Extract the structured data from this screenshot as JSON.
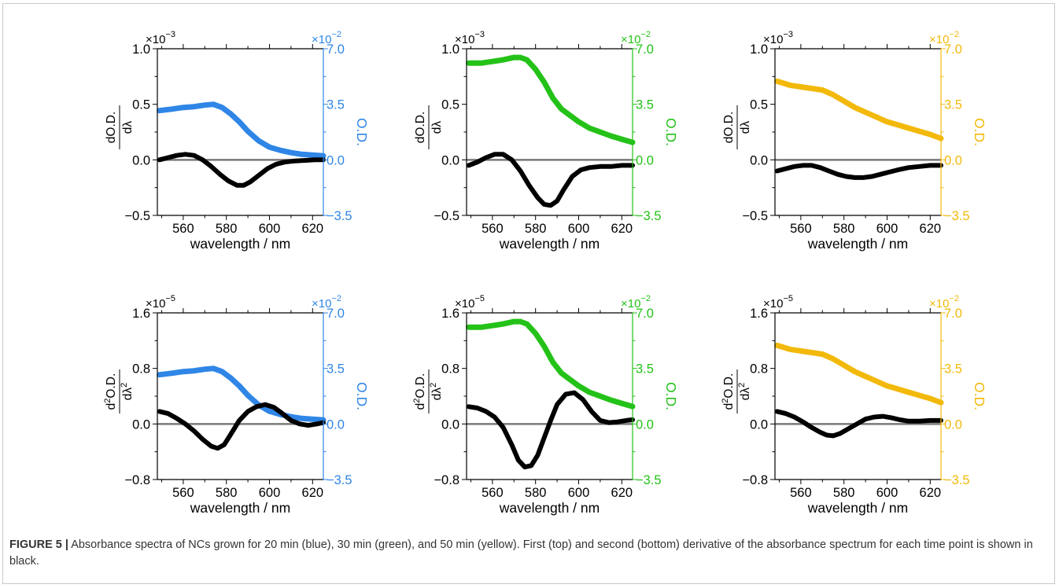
{
  "chart_data": [
    {
      "type": "line",
      "row": "top",
      "color": "#2f86e6",
      "left_axis": {
        "ylim": [
          -0.5,
          1.0
        ],
        "ticks": [
          "1.0",
          "0.5",
          "0.0",
          "-0.5"
        ],
        "label": "dO.D. / dλ",
        "multiplier": "×10",
        "exponent": "−3"
      },
      "right_axis": {
        "ylim": [
          -3.5,
          7.0
        ],
        "ticks": [
          "7.0",
          "3.5",
          "0.0",
          "-3.5"
        ],
        "label": "O.D.",
        "multiplier": "×10",
        "exponent": "−2"
      },
      "xlim": [
        548,
        625
      ],
      "xticks": [
        "560",
        "580",
        "600",
        "620"
      ],
      "xlabel": "wavelength / nm",
      "absorbance": {
        "x": [
          549,
          555,
          560,
          565,
          570,
          574,
          578,
          582,
          586,
          590,
          595,
          600,
          605,
          610,
          615,
          620,
          625
        ],
        "y": [
          3.1,
          3.2,
          3.3,
          3.35,
          3.45,
          3.5,
          3.3,
          2.9,
          2.4,
          1.8,
          1.2,
          0.8,
          0.6,
          0.45,
          0.35,
          0.3,
          0.25
        ]
      },
      "derivative": {
        "x": [
          549,
          553,
          557,
          561,
          565,
          569,
          573,
          577,
          581,
          585,
          588,
          591,
          595,
          599,
          603,
          607,
          612,
          617,
          621,
          625
        ],
        "y": [
          0.0,
          0.02,
          0.04,
          0.05,
          0.04,
          0.0,
          -0.06,
          -0.13,
          -0.19,
          -0.23,
          -0.23,
          -0.2,
          -0.14,
          -0.08,
          -0.04,
          -0.02,
          -0.01,
          -0.005,
          0.0,
          0.0
        ]
      }
    },
    {
      "type": "line",
      "row": "top",
      "color": "#24c218",
      "left_axis": {
        "ylim": [
          -0.5,
          1.0
        ],
        "ticks": [
          "1.0",
          "0.5",
          "0.0",
          "-0.5"
        ],
        "label": "dO.D. / dλ",
        "multiplier": "×10",
        "exponent": "−3"
      },
      "right_axis": {
        "ylim": [
          -3.5,
          7.0
        ],
        "ticks": [
          "7.0",
          "3.5",
          "0.0",
          "-3.5"
        ],
        "label": "O.D.",
        "multiplier": "×10",
        "exponent": "−2"
      },
      "xlim": [
        548,
        625
      ],
      "xticks": [
        "560",
        "580",
        "600",
        "620"
      ],
      "xlabel": "wavelength / nm",
      "absorbance": {
        "x": [
          549,
          555,
          560,
          565,
          570,
          573,
          576,
          580,
          584,
          588,
          592,
          596,
          600,
          605,
          610,
          615,
          620,
          625
        ],
        "y": [
          6.1,
          6.1,
          6.2,
          6.3,
          6.45,
          6.45,
          6.3,
          5.7,
          4.9,
          3.9,
          3.2,
          2.8,
          2.4,
          2.0,
          1.75,
          1.5,
          1.3,
          1.1
        ]
      },
      "derivative": {
        "x": [
          549,
          553,
          557,
          561,
          565,
          569,
          573,
          577,
          581,
          584,
          587,
          590,
          593,
          597,
          601,
          605,
          610,
          615,
          620,
          625
        ],
        "y": [
          -0.05,
          -0.02,
          0.02,
          0.05,
          0.05,
          0.0,
          -0.1,
          -0.23,
          -0.34,
          -0.4,
          -0.41,
          -0.37,
          -0.27,
          -0.15,
          -0.09,
          -0.07,
          -0.06,
          -0.06,
          -0.05,
          -0.05
        ]
      }
    },
    {
      "type": "line",
      "row": "top",
      "color": "#f2b90a",
      "left_axis": {
        "ylim": [
          -0.5,
          1.0
        ],
        "ticks": [
          "1.0",
          "0.5",
          "0.0",
          "-0.5"
        ],
        "label": "dO.D. / dλ",
        "multiplier": "×10",
        "exponent": "−3"
      },
      "right_axis": {
        "ylim": [
          -3.5,
          7.0
        ],
        "ticks": [
          "7.0",
          "3.5",
          "0.0",
          "-3.5"
        ],
        "label": "O.D.",
        "multiplier": "×10",
        "exponent": "−2"
      },
      "xlim": [
        548,
        625
      ],
      "xticks": [
        "560",
        "580",
        "600",
        "620"
      ],
      "xlabel": "wavelength / nm",
      "absorbance": {
        "x": [
          549,
          555,
          560,
          565,
          570,
          575,
          580,
          585,
          590,
          595,
          600,
          605,
          610,
          615,
          620,
          625
        ],
        "y": [
          4.95,
          4.7,
          4.6,
          4.5,
          4.4,
          4.1,
          3.7,
          3.3,
          3.0,
          2.7,
          2.4,
          2.2,
          2.0,
          1.8,
          1.6,
          1.35
        ]
      },
      "derivative": {
        "x": [
          549,
          553,
          557,
          561,
          565,
          569,
          573,
          577,
          581,
          585,
          589,
          593,
          597,
          601,
          605,
          610,
          615,
          620,
          625
        ],
        "y": [
          -0.1,
          -0.08,
          -0.06,
          -0.05,
          -0.05,
          -0.07,
          -0.1,
          -0.13,
          -0.15,
          -0.16,
          -0.16,
          -0.15,
          -0.13,
          -0.11,
          -0.09,
          -0.07,
          -0.06,
          -0.05,
          -0.05
        ]
      }
    },
    {
      "type": "line",
      "row": "bottom",
      "color": "#2f86e6",
      "left_axis": {
        "ylim": [
          -0.8,
          1.6
        ],
        "ticks": [
          "1.6",
          "0.8",
          "0.0",
          "-0.8"
        ],
        "label": "d²O.D. / dλ²",
        "multiplier": "×10",
        "exponent": "−5"
      },
      "right_axis": {
        "ylim": [
          -3.5,
          7.0
        ],
        "ticks": [
          "7.0",
          "3.5",
          "0.0",
          "-3.5"
        ],
        "label": "O.D.",
        "multiplier": "×10",
        "exponent": "−2"
      },
      "xlim": [
        548,
        625
      ],
      "xticks": [
        "560",
        "580",
        "600",
        "620"
      ],
      "xlabel": "wavelength / nm",
      "absorbance": {
        "x": [
          549,
          555,
          560,
          565,
          570,
          574,
          578,
          582,
          586,
          590,
          595,
          600,
          605,
          610,
          615,
          620,
          625
        ],
        "y": [
          3.1,
          3.2,
          3.3,
          3.35,
          3.45,
          3.5,
          3.3,
          2.9,
          2.4,
          1.8,
          1.2,
          0.8,
          0.6,
          0.45,
          0.35,
          0.3,
          0.25
        ]
      },
      "derivative": {
        "x": [
          549,
          553,
          557,
          561,
          565,
          569,
          573,
          576,
          579,
          582,
          586,
          590,
          594,
          598,
          602,
          606,
          610,
          614,
          618,
          622,
          625
        ],
        "y": [
          0.18,
          0.15,
          0.08,
          0.0,
          -0.1,
          -0.22,
          -0.32,
          -0.35,
          -0.3,
          -0.15,
          0.05,
          0.18,
          0.25,
          0.28,
          0.24,
          0.15,
          0.05,
          0.0,
          -0.02,
          0.0,
          0.02
        ]
      }
    },
    {
      "type": "line",
      "row": "bottom",
      "color": "#24c218",
      "left_axis": {
        "ylim": [
          -0.8,
          1.6
        ],
        "ticks": [
          "1.6",
          "0.8",
          "0.0",
          "-0.8"
        ],
        "label": "d²O.D. / dλ²",
        "multiplier": "×10",
        "exponent": "−5"
      },
      "right_axis": {
        "ylim": [
          -3.5,
          7.0
        ],
        "ticks": [
          "7.0",
          "3.5",
          "0.0",
          "-3.5"
        ],
        "label": "O.D.",
        "multiplier": "×10",
        "exponent": "−2"
      },
      "xlim": [
        548,
        625
      ],
      "xticks": [
        "560",
        "580",
        "600",
        "620"
      ],
      "xlabel": "wavelength / nm",
      "absorbance": {
        "x": [
          549,
          555,
          560,
          565,
          570,
          573,
          576,
          580,
          584,
          588,
          592,
          596,
          600,
          605,
          610,
          615,
          620,
          625
        ],
        "y": [
          6.1,
          6.1,
          6.2,
          6.3,
          6.45,
          6.45,
          6.3,
          5.7,
          4.9,
          3.9,
          3.2,
          2.8,
          2.4,
          2.0,
          1.75,
          1.5,
          1.3,
          1.1
        ]
      },
      "derivative": {
        "x": [
          549,
          553,
          557,
          561,
          565,
          569,
          572,
          575,
          578,
          581,
          584,
          587,
          590,
          594,
          598,
          602,
          606,
          610,
          614,
          618,
          622,
          625
        ],
        "y": [
          0.25,
          0.23,
          0.18,
          0.1,
          -0.05,
          -0.3,
          -0.52,
          -0.62,
          -0.6,
          -0.45,
          -0.2,
          0.05,
          0.28,
          0.43,
          0.45,
          0.35,
          0.18,
          0.05,
          0.02,
          0.03,
          0.05,
          0.06
        ]
      }
    },
    {
      "type": "line",
      "row": "bottom",
      "color": "#f2b90a",
      "left_axis": {
        "ylim": [
          -0.8,
          1.6
        ],
        "ticks": [
          "1.6",
          "0.8",
          "0.0",
          "-0.8"
        ],
        "label": "d²O.D. / dλ²",
        "multiplier": "×10",
        "exponent": "−5"
      },
      "right_axis": {
        "ylim": [
          -3.5,
          7.0
        ],
        "ticks": [
          "7.0",
          "3.5",
          "0.0",
          "-3.5"
        ],
        "label": "O.D.",
        "multiplier": "×10",
        "exponent": "−2"
      },
      "xlim": [
        548,
        625
      ],
      "xticks": [
        "560",
        "580",
        "600",
        "620"
      ],
      "xlabel": "wavelength / nm",
      "absorbance": {
        "x": [
          549,
          555,
          560,
          565,
          570,
          575,
          580,
          585,
          590,
          595,
          600,
          605,
          610,
          615,
          620,
          625
        ],
        "y": [
          4.95,
          4.7,
          4.6,
          4.5,
          4.4,
          4.1,
          3.7,
          3.3,
          3.0,
          2.7,
          2.4,
          2.2,
          2.0,
          1.8,
          1.6,
          1.35
        ]
      },
      "derivative": {
        "x": [
          549,
          553,
          557,
          561,
          565,
          569,
          572,
          575,
          578,
          582,
          586,
          590,
          594,
          598,
          602,
          606,
          610,
          615,
          620,
          625
        ],
        "y": [
          0.18,
          0.15,
          0.1,
          0.03,
          -0.05,
          -0.12,
          -0.16,
          -0.17,
          -0.14,
          -0.07,
          0.0,
          0.07,
          0.1,
          0.11,
          0.09,
          0.06,
          0.04,
          0.04,
          0.05,
          0.05
        ]
      }
    }
  ],
  "caption": {
    "label": "FIGURE 5 |",
    "text": " Absorbance spectra of NCs grown for 20 min (blue), 30 min (green), and 50 min (yellow). First (top) and second (bottom) derivative of the absorbance spectrum for each time point is shown in black."
  }
}
